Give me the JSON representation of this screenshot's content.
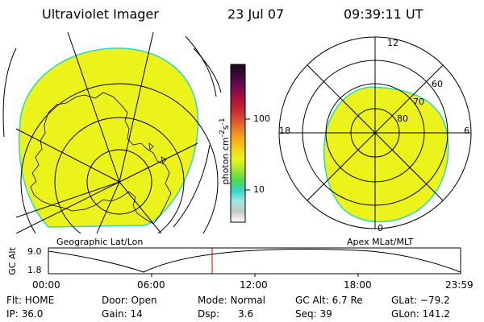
{
  "header": {
    "instrument": "Ultraviolet Imager",
    "date": "23 Jul 07",
    "time": "09:39:11 UT"
  },
  "colors": {
    "aurora_fill": "#ecf31a",
    "aurora_edge": "#2bd7c8",
    "grid": "#000000",
    "time_marker": "#cc0000"
  },
  "geo_panel": {
    "label": "Geographic Lat/Lon",
    "content": "yellow auroral emission disk with coastline outline and lat/lon grid"
  },
  "colorbar": {
    "unit_label": "photon cm",
    "unit_sup1": "-2",
    "unit_mid": "s",
    "unit_sup2": "-1",
    "ticks": [
      "100",
      "10"
    ],
    "stops": [
      "#ffffff",
      "#c8c8c8",
      "#a0e6e6",
      "#33d6c8",
      "#52d84a",
      "#a8e632",
      "#ecf31a",
      "#f2d21c",
      "#f5a51b",
      "#e8742a",
      "#d84036",
      "#c02030",
      "#a01040",
      "#6a0a52",
      "#3a0a3a",
      "#1a0818"
    ]
  },
  "polar_panel": {
    "label": "Apex MLat/MLT",
    "mlt_labels": [
      "12",
      "18",
      "6",
      "0"
    ],
    "mlat_labels": [
      "60",
      "70",
      "80"
    ]
  },
  "timeline": {
    "y_axis_label": "GC Alt",
    "y_ticks": [
      "9.0",
      "1.8"
    ],
    "x_ticks": [
      "00:00",
      "06:00",
      "12:00",
      "18:00",
      "23:59"
    ],
    "marker_time": "09:39"
  },
  "status": {
    "row1": [
      {
        "label": "Flt: HOME"
      },
      {
        "label": "Door: Open"
      },
      {
        "label": "Mode: Normal"
      },
      {
        "label": "GC Alt: 6.7 Re"
      },
      {
        "label": "GLat: −79.2"
      }
    ],
    "row2": [
      {
        "label": "IP: 36.0"
      },
      {
        "label": "Gain: 14"
      },
      {
        "label": "Dsp:      3.6"
      },
      {
        "label": "Seq: 39"
      },
      {
        "label": "GLon: 141.2"
      }
    ]
  }
}
